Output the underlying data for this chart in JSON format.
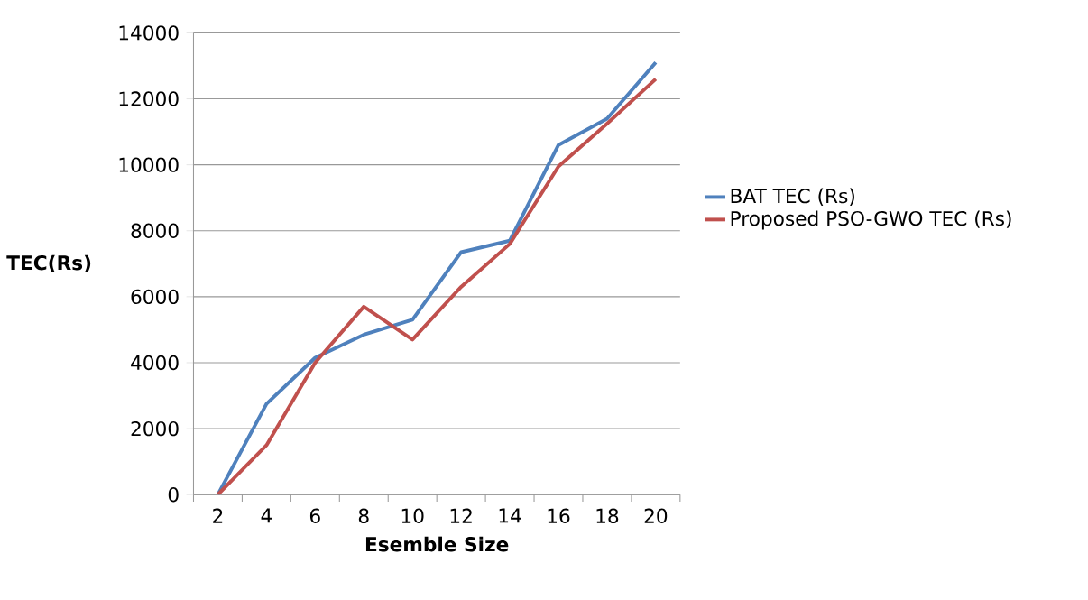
{
  "chart_data": {
    "type": "line",
    "xlabel": "Esemble Size",
    "ylabel": "TEC(Rs)",
    "categories": [
      "2",
      "4",
      "6",
      "8",
      "10",
      "12",
      "14",
      "16",
      "18",
      "20"
    ],
    "series": [
      {
        "name": "BAT TEC (Rs)",
        "color": "#4f81bd",
        "values": [
          0,
          2750,
          4150,
          4850,
          5300,
          7350,
          7700,
          10600,
          11400,
          13100
        ]
      },
      {
        "name": "Proposed PSO-GWO TEC (Rs)",
        "color": "#c0504d",
        "values": [
          0,
          1500,
          4000,
          5700,
          4700,
          6300,
          7600,
          9950,
          11250,
          12600
        ]
      }
    ],
    "ylim": [
      0,
      14000
    ],
    "yticks": [
      0,
      2000,
      4000,
      6000,
      8000,
      10000,
      12000,
      14000
    ],
    "grid": "y",
    "legend": "right",
    "marker": "none",
    "line_style": "solid"
  }
}
